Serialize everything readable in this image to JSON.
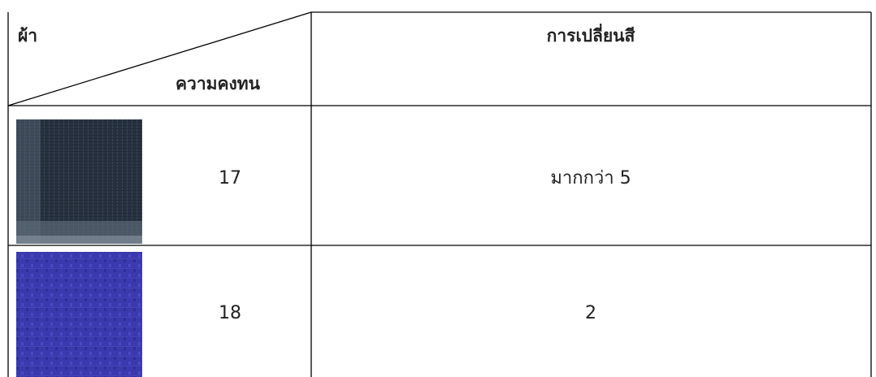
{
  "header": {
    "fabric": "ผ้า",
    "durability": "ความคงทน",
    "color_change": "การเปลี่ยนสี"
  },
  "rows": [
    {
      "sample": "17",
      "color_change": "มากกว่า 5"
    },
    {
      "sample": "18",
      "color_change": "2"
    }
  ]
}
